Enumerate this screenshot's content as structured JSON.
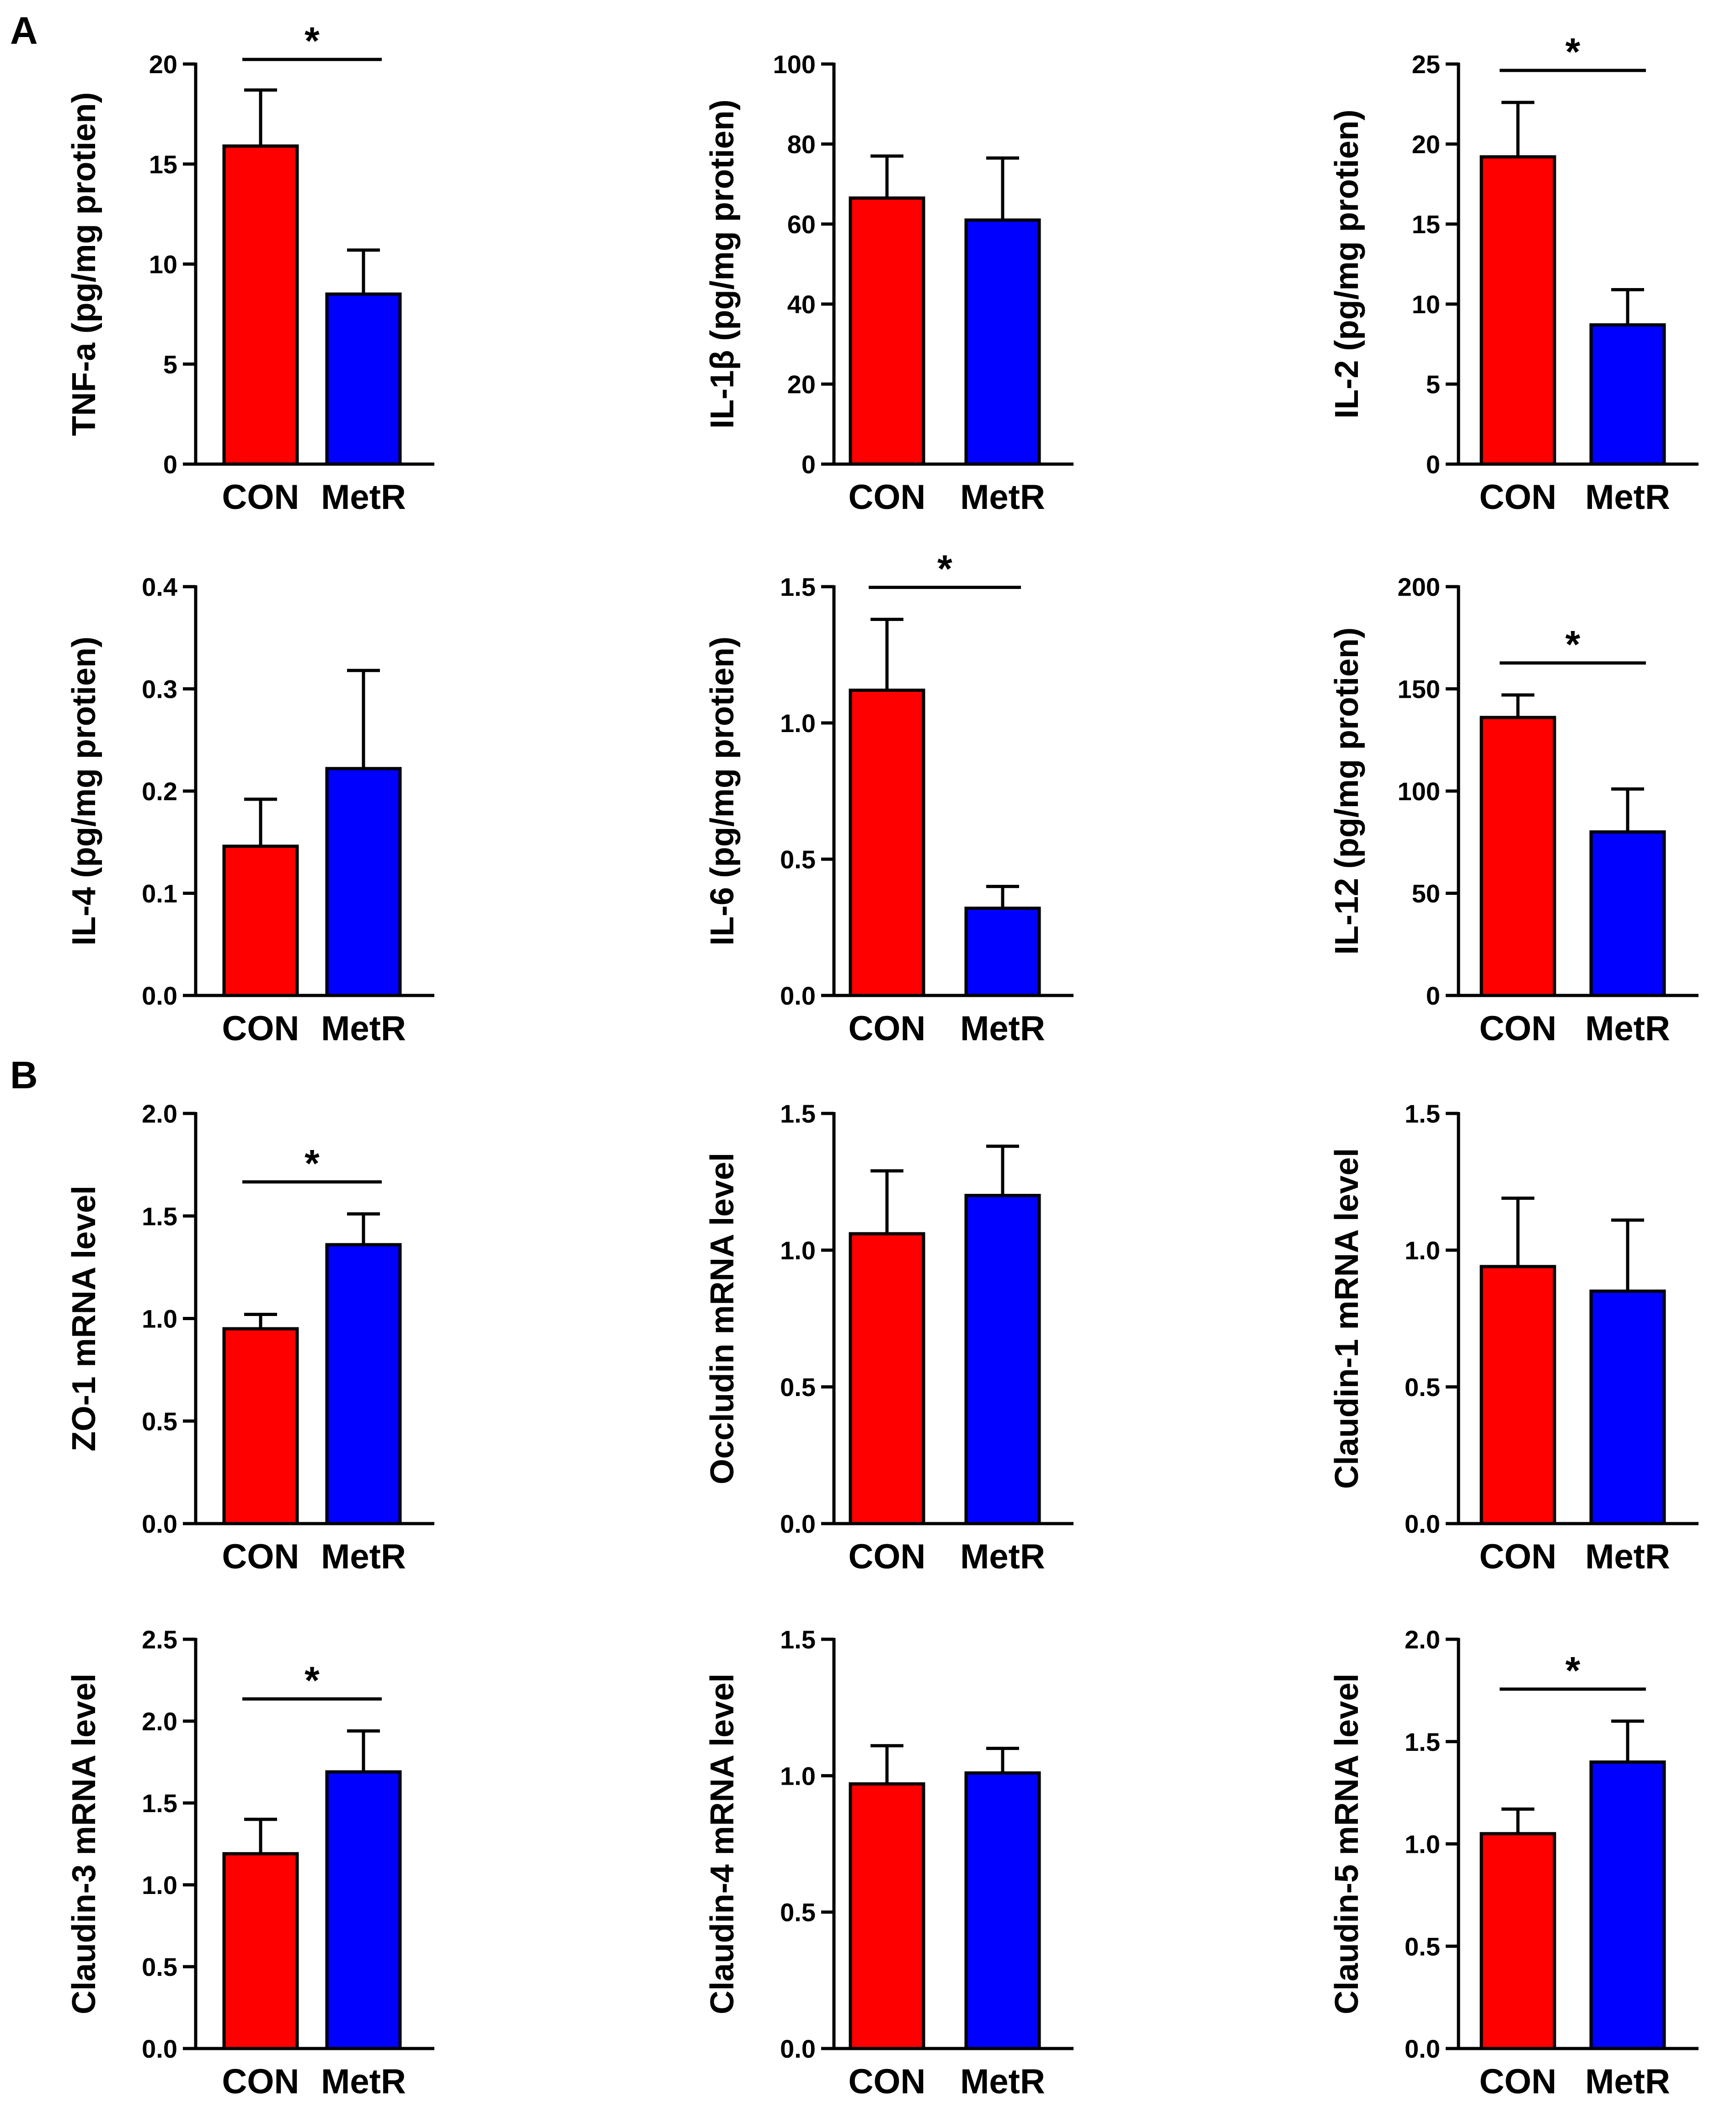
{
  "panel_labels": [
    "A",
    "B"
  ],
  "colors": {
    "con": "#ff0000",
    "metr": "#0000ff",
    "stroke": "#000000"
  },
  "chart_data": [
    {
      "type": "bar",
      "ylabel": "TNF-a (pg/mg protien)",
      "categories": [
        "CON",
        "MetR"
      ],
      "values": [
        15.9,
        8.5
      ],
      "errors": [
        2.8,
        2.2
      ],
      "ylim": [
        0,
        20
      ],
      "ticks": [
        0,
        5,
        10,
        15,
        20
      ],
      "tick_labels": [
        "0",
        "5",
        "10",
        "15",
        "20"
      ],
      "significance": "*",
      "title": "",
      "xlabel": ""
    },
    {
      "type": "bar",
      "ylabel": "IL-1β (pg/mg protien)",
      "categories": [
        "CON",
        "MetR"
      ],
      "values": [
        66.5,
        61.0
      ],
      "errors": [
        10.5,
        15.5
      ],
      "ylim": [
        0,
        100
      ],
      "ticks": [
        0,
        20,
        40,
        60,
        80,
        100
      ],
      "tick_labels": [
        "0",
        "20",
        "40",
        "60",
        "80",
        "100"
      ],
      "significance": "",
      "title": "",
      "xlabel": ""
    },
    {
      "type": "bar",
      "ylabel": "IL-2 (pg/mg protien)",
      "categories": [
        "CON",
        "MetR"
      ],
      "values": [
        19.2,
        8.7
      ],
      "errors": [
        3.4,
        2.2
      ],
      "ylim": [
        0,
        25
      ],
      "ticks": [
        0,
        5,
        10,
        15,
        20,
        25
      ],
      "tick_labels": [
        "0",
        "5",
        "10",
        "15",
        "20",
        "25"
      ],
      "significance": "*",
      "title": "",
      "xlabel": ""
    },
    {
      "type": "bar",
      "ylabel": "IL-4 (pg/mg protien)",
      "categories": [
        "CON",
        "MetR"
      ],
      "values": [
        0.146,
        0.222
      ],
      "errors": [
        0.046,
        0.096
      ],
      "ylim": [
        0,
        0.4
      ],
      "ticks": [
        0,
        0.1,
        0.2,
        0.3,
        0.4
      ],
      "tick_labels": [
        "0.0",
        "0.1",
        "0.2",
        "0.3",
        "0.4"
      ],
      "significance": "",
      "title": "",
      "xlabel": ""
    },
    {
      "type": "bar",
      "ylabel": "IL-6 (pg/mg protien)",
      "categories": [
        "CON",
        "MetR"
      ],
      "values": [
        1.12,
        0.32
      ],
      "errors": [
        0.26,
        0.08
      ],
      "ylim": [
        0,
        1.5
      ],
      "ticks": [
        0,
        0.5,
        1.0,
        1.5
      ],
      "tick_labels": [
        "0.0",
        "0.5",
        "1.0",
        "1.5"
      ],
      "significance": "*",
      "title": "",
      "xlabel": ""
    },
    {
      "type": "bar",
      "ylabel": "IL-12 (pg/mg protien)",
      "categories": [
        "CON",
        "MetR"
      ],
      "values": [
        136,
        80
      ],
      "errors": [
        11,
        21
      ],
      "ylim": [
        0,
        200
      ],
      "ticks": [
        0,
        50,
        100,
        150,
        200
      ],
      "tick_labels": [
        "0",
        "50",
        "100",
        "150",
        "200"
      ],
      "significance": "*",
      "title": "",
      "xlabel": ""
    },
    {
      "type": "bar",
      "ylabel": "ZO-1 mRNA level",
      "categories": [
        "CON",
        "MetR"
      ],
      "values": [
        0.95,
        1.36
      ],
      "errors": [
        0.07,
        0.15
      ],
      "ylim": [
        0,
        2.0
      ],
      "ticks": [
        0,
        0.5,
        1.0,
        1.5,
        2.0
      ],
      "tick_labels": [
        "0.0",
        "0.5",
        "1.0",
        "1.5",
        "2.0"
      ],
      "significance": "*",
      "title": "",
      "xlabel": ""
    },
    {
      "type": "bar",
      "ylabel": "Occludin mRNA level",
      "categories": [
        "CON",
        "MetR"
      ],
      "values": [
        1.06,
        1.2
      ],
      "errors": [
        0.23,
        0.18
      ],
      "ylim": [
        0,
        1.5
      ],
      "ticks": [
        0,
        0.5,
        1.0,
        1.5
      ],
      "tick_labels": [
        "0.0",
        "0.5",
        "1.0",
        "1.5"
      ],
      "significance": "",
      "title": "",
      "xlabel": ""
    },
    {
      "type": "bar",
      "ylabel": "Claudin-1 mRNA level",
      "categories": [
        "CON",
        "MetR"
      ],
      "values": [
        0.94,
        0.85
      ],
      "errors": [
        0.25,
        0.26
      ],
      "ylim": [
        0,
        1.5
      ],
      "ticks": [
        0,
        0.5,
        1.0,
        1.5
      ],
      "tick_labels": [
        "0.0",
        "0.5",
        "1.0",
        "1.5"
      ],
      "significance": "",
      "title": "",
      "xlabel": ""
    },
    {
      "type": "bar",
      "ylabel": "Claudin-3 mRNA level",
      "categories": [
        "CON",
        "MetR"
      ],
      "values": [
        1.19,
        1.69
      ],
      "errors": [
        0.21,
        0.25
      ],
      "ylim": [
        0,
        2.5
      ],
      "ticks": [
        0,
        0.5,
        1.0,
        1.5,
        2.0,
        2.5
      ],
      "tick_labels": [
        "0.0",
        "0.5",
        "1.0",
        "1.5",
        "2.0",
        "2.5"
      ],
      "significance": "*",
      "title": "",
      "xlabel": ""
    },
    {
      "type": "bar",
      "ylabel": "Claudin-4 mRNA level",
      "categories": [
        "CON",
        "MetR"
      ],
      "values": [
        0.97,
        1.01
      ],
      "errors": [
        0.14,
        0.09
      ],
      "ylim": [
        0,
        1.5
      ],
      "ticks": [
        0,
        0.5,
        1.0,
        1.5
      ],
      "tick_labels": [
        "0.0",
        "0.5",
        "1.0",
        "1.5"
      ],
      "significance": "",
      "title": "",
      "xlabel": ""
    },
    {
      "type": "bar",
      "ylabel": "Claudin-5 mRNA level",
      "categories": [
        "CON",
        "MetR"
      ],
      "values": [
        1.05,
        1.4
      ],
      "errors": [
        0.12,
        0.2
      ],
      "ylim": [
        0,
        2.0
      ],
      "ticks": [
        0,
        0.5,
        1.0,
        1.5,
        2.0
      ],
      "tick_labels": [
        "0.0",
        "0.5",
        "1.0",
        "1.5",
        "2.0"
      ],
      "significance": "*",
      "title": "",
      "xlabel": ""
    }
  ]
}
